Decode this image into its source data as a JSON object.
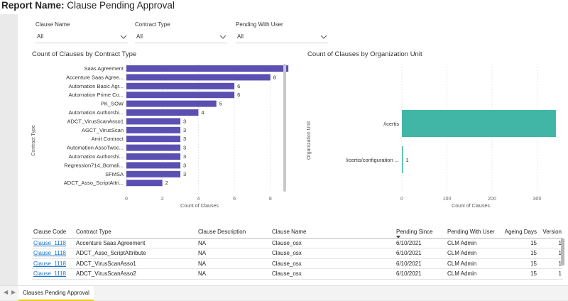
{
  "report": {
    "prefix": "Report Name:",
    "name": "Clause Pending Approval"
  },
  "filters": [
    {
      "label": "Clause Name",
      "value": "All"
    },
    {
      "label": "Contract Type",
      "value": "All"
    },
    {
      "label": "Pending With User",
      "value": "All"
    }
  ],
  "charts": {
    "contract": {
      "title": "Count of Clauses by Contract Type",
      "ylabel": "Contract Type",
      "xlabel": "Count of Clauses",
      "xticks": [
        "0",
        "2",
        "4",
        "6",
        "8"
      ]
    },
    "org": {
      "title": "Count of Clauses by Organization Unit",
      "ylabel": "Organization Unit",
      "xlabel": "Count of Clauses",
      "xticks": [
        "0",
        "100",
        "200",
        "300"
      ]
    }
  },
  "chart_data": [
    {
      "type": "bar",
      "orientation": "horizontal",
      "title": "Count of Clauses by Contract Type",
      "xlabel": "Count of Clauses",
      "ylabel": "Contract Type",
      "xlim": [
        0,
        9
      ],
      "color": "#5b50b2",
      "categories": [
        "Saas Agreement",
        "Accenture Saas Agree...",
        "Automation Basic Agr...",
        "Automation Prime Co...",
        "PK_SOW",
        "Automation Authorshi...",
        "ADCT_VirusScanAsso1",
        "AGCT_VirusScan",
        "Amit Contract",
        "Automation AssoTwoc...",
        "Automation Authorshi...",
        "Regression714_Bomali...",
        "SFMSA",
        "ADCT_Asso_ScriptAttri..."
      ],
      "values": [
        9,
        8,
        6,
        6,
        5,
        4,
        3,
        3,
        3,
        3,
        3,
        3,
        3,
        2
      ],
      "labels": [
        "9",
        "8",
        "6",
        "6",
        "5",
        "4",
        "3",
        "3",
        "3",
        "3",
        "3",
        "3",
        "3",
        "2"
      ]
    },
    {
      "type": "bar",
      "orientation": "horizontal",
      "title": "Count of Clauses by Organization Unit",
      "xlabel": "Count of Clauses",
      "ylabel": "Organization Unit",
      "xlim": [
        0,
        360
      ],
      "color": "#41b6a6",
      "categories": [
        "/icertis",
        "/icertis/configuration ..."
      ],
      "values": [
        360,
        1
      ],
      "labels": [
        "360",
        "1"
      ]
    }
  ],
  "table": {
    "columns": [
      "Clause Code",
      "Contract Type",
      "Clause Description",
      "Clause Name",
      "Pending Since",
      "Pending With User",
      "Ageing Days",
      "Version"
    ],
    "rows": [
      [
        "Clause_1118",
        "Accenture Saas Agreement",
        "NA",
        "Clause_osx",
        "6/10/2021",
        "CLM Admin",
        "15",
        "1"
      ],
      [
        "Clause_1118",
        "ADCT_Asso_ScriptAttribute",
        "NA",
        "Clause_osx",
        "6/10/2021",
        "CLM Admin",
        "15",
        "1"
      ],
      [
        "Clause_1118",
        "ADCT_VirusScanAsso1",
        "NA",
        "Clause_osx",
        "6/10/2021",
        "CLM Admin",
        "15",
        "1"
      ],
      [
        "Clause_1118",
        "ADCT_VirusScanAsso2",
        "NA",
        "Clause_osx",
        "6/10/2021",
        "CLM Admin",
        "15",
        "1"
      ]
    ]
  },
  "page_tab": "Clauses Pending Approval",
  "colors": {
    "purple_bar": "#5b50b2",
    "teal_bar": "#41b6a6",
    "tab_accent": "#f2c811",
    "link": "#1a73c8"
  }
}
